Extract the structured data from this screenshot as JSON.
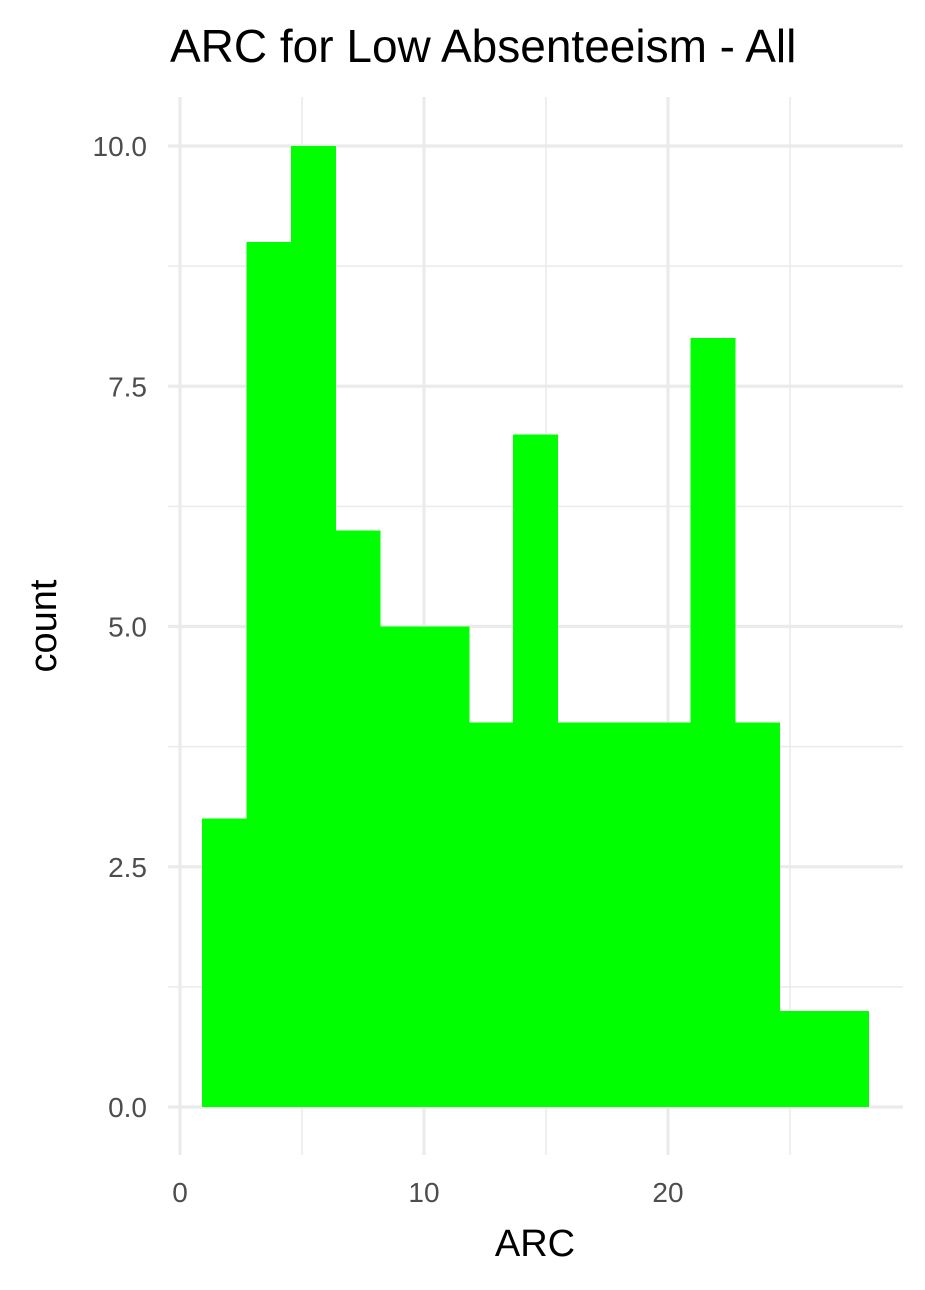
{
  "chart_data": {
    "type": "bar",
    "title": "ARC for Low Absenteeism - All",
    "xlabel": "ARC",
    "ylabel": "count",
    "bar_color": "#00ff00",
    "background": "#ffffff",
    "grid": true,
    "grid_color": "#ebebeb",
    "xlim": [
      0,
      29.2
    ],
    "ylim": [
      0,
      10.4
    ],
    "x_ticks": [
      {
        "value": 0,
        "label": "0"
      },
      {
        "value": 10,
        "label": "10"
      },
      {
        "value": 20,
        "label": "20"
      }
    ],
    "x_minor_ticks": [
      5,
      15,
      25
    ],
    "y_ticks": [
      {
        "value": 0,
        "label": "0.0"
      },
      {
        "value": 2.5,
        "label": "2.5"
      },
      {
        "value": 5,
        "label": "5.0"
      },
      {
        "value": 7.5,
        "label": "7.5"
      },
      {
        "value": 10,
        "label": "10.0"
      }
    ],
    "y_minor_ticks": [
      1.25,
      3.75,
      6.25,
      8.75
    ],
    "bins": [
      {
        "x0": 0.91,
        "x1": 2.73,
        "count": 3
      },
      {
        "x0": 2.73,
        "x1": 4.55,
        "count": 9
      },
      {
        "x0": 4.55,
        "x1": 6.37,
        "count": 10
      },
      {
        "x0": 6.37,
        "x1": 8.19,
        "count": 6
      },
      {
        "x0": 8.19,
        "x1": 10.01,
        "count": 5
      },
      {
        "x0": 10.01,
        "x1": 11.83,
        "count": 5
      },
      {
        "x0": 11.83,
        "x1": 13.65,
        "count": 4
      },
      {
        "x0": 13.65,
        "x1": 15.47,
        "count": 7
      },
      {
        "x0": 15.47,
        "x1": 17.29,
        "count": 4
      },
      {
        "x0": 17.29,
        "x1": 19.11,
        "count": 4
      },
      {
        "x0": 19.11,
        "x1": 20.93,
        "count": 4
      },
      {
        "x0": 20.93,
        "x1": 22.75,
        "count": 8
      },
      {
        "x0": 22.75,
        "x1": 24.57,
        "count": 4
      },
      {
        "x0": 24.57,
        "x1": 26.39,
        "count": 1
      },
      {
        "x0": 26.39,
        "x1": 28.21,
        "count": 1
      }
    ]
  }
}
